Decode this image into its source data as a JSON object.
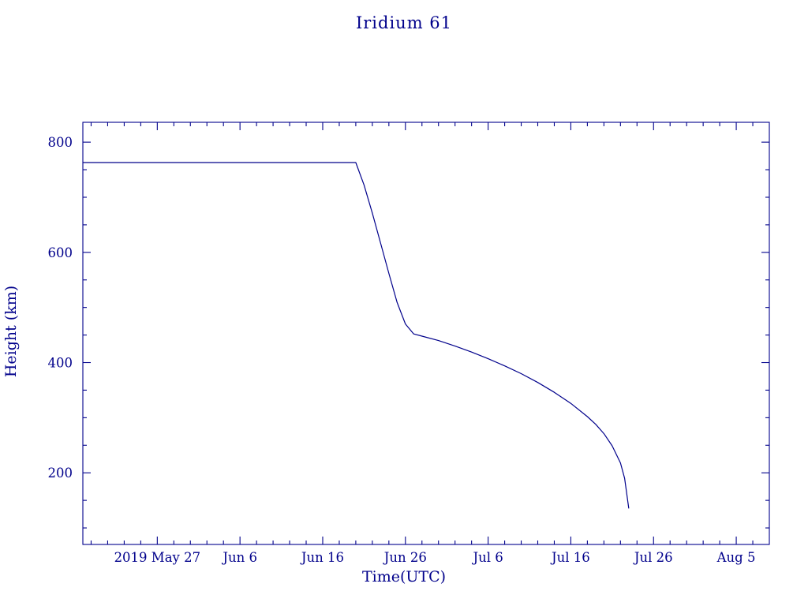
{
  "colors": {
    "ink": "#00008b",
    "background": "#ffffff"
  },
  "chart_data": {
    "type": "line",
    "title": "Iridium 61",
    "xlabel": "Time(UTC)",
    "ylabel": "Height (km)",
    "xlim": [
      "2019-05-18",
      "2019-08-09"
    ],
    "ylim": [
      70,
      836
    ],
    "grid": false,
    "legend": "none",
    "x_ticks": [
      {
        "date": "2019-05-27",
        "label": "2019 May 27"
      },
      {
        "date": "2019-06-06",
        "label": "Jun  6"
      },
      {
        "date": "2019-06-16",
        "label": "Jun 16"
      },
      {
        "date": "2019-06-26",
        "label": "Jun 26"
      },
      {
        "date": "2019-07-06",
        "label": "Jul  6"
      },
      {
        "date": "2019-07-16",
        "label": "Jul 16"
      },
      {
        "date": "2019-07-26",
        "label": "Jul 26"
      },
      {
        "date": "2019-08-05",
        "label": "Aug  5"
      }
    ],
    "y_ticks": [
      200,
      400,
      600,
      800
    ],
    "x_minor_days": 2,
    "y_minor_step": 50,
    "line_color": "#00008b",
    "series": [
      {
        "name": "orbital-height",
        "points": [
          [
            "2019-05-18",
            763
          ],
          [
            "2019-06-20",
            763
          ],
          [
            "2019-06-21",
            722
          ],
          [
            "2019-06-22",
            671
          ],
          [
            "2019-06-23",
            617
          ],
          [
            "2019-06-24",
            562
          ],
          [
            "2019-06-25",
            509
          ],
          [
            "2019-06-26",
            470
          ],
          [
            "2019-06-27",
            452
          ],
          [
            "2019-06-28",
            448
          ],
          [
            "2019-06-30",
            440
          ],
          [
            "2019-07-02",
            430
          ],
          [
            "2019-07-04",
            419
          ],
          [
            "2019-07-06",
            407
          ],
          [
            "2019-07-08",
            394
          ],
          [
            "2019-07-10",
            380
          ],
          [
            "2019-07-12",
            364
          ],
          [
            "2019-07-14",
            346
          ],
          [
            "2019-07-16",
            326
          ],
          [
            "2019-07-18",
            302
          ],
          [
            "2019-07-19",
            288
          ],
          [
            "2019-07-20",
            271
          ],
          [
            "2019-07-21",
            249
          ],
          [
            "2019-07-22",
            218
          ],
          [
            "2019-07-22T12:00",
            190
          ],
          [
            "2019-07-23",
            136
          ]
        ]
      }
    ]
  }
}
